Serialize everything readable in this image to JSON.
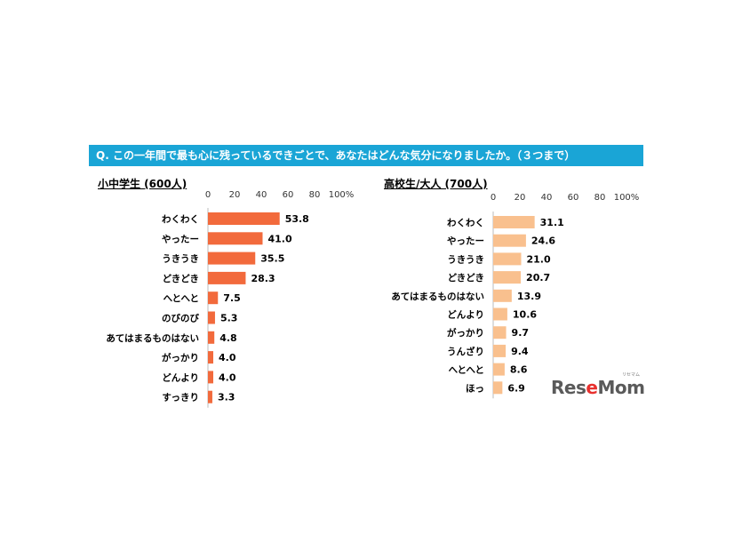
{
  "question": "Q. この一年間で最も心に残っているできごとで、あなたはどんな気分になりましたか。（３つまで）",
  "logo": {
    "text_a": "Res",
    "text_b": "e",
    "text_c": "Mom",
    "kana": "リセマム",
    "accent": "#e8302e"
  },
  "chart_data": [
    {
      "type": "bar",
      "orientation": "horizontal",
      "title": "小中学生 (600人)",
      "color": "#f26a3c",
      "xlim": [
        0,
        100
      ],
      "ticks": [
        "0",
        "20",
        "40",
        "60",
        "80",
        "100%"
      ],
      "categories": [
        "わくわく",
        "やったー",
        "うきうき",
        "どきどき",
        "へとへと",
        "のびのび",
        "あてはまるものはない",
        "がっかり",
        "どんより",
        "すっきり"
      ],
      "values": [
        53.8,
        41.0,
        35.5,
        28.3,
        7.5,
        5.3,
        4.8,
        4.0,
        4.0,
        3.3
      ],
      "labels": [
        "53.8",
        "41.0",
        "35.5",
        "28.3",
        "7.5",
        "5.3",
        "4.8",
        "4.0",
        "4.0",
        "3.3"
      ]
    },
    {
      "type": "bar",
      "orientation": "horizontal",
      "title": "高校生/大人 (700人)",
      "color": "#f9c08e",
      "xlim": [
        0,
        100
      ],
      "ticks": [
        "0",
        "20",
        "40",
        "60",
        "80",
        "100%"
      ],
      "categories": [
        "わくわく",
        "やったー",
        "うきうき",
        "どきどき",
        "あてはまるものはない",
        "どんより",
        "がっかり",
        "うんざり",
        "へとへと",
        "ほっ"
      ],
      "values": [
        31.1,
        24.6,
        21.0,
        20.7,
        13.9,
        10.6,
        9.7,
        9.4,
        8.6,
        6.9
      ],
      "labels": [
        "31.1",
        "24.6",
        "21.0",
        "20.7",
        "13.9",
        "10.6",
        "9.7",
        "9.4",
        "8.6",
        "6.9"
      ]
    }
  ]
}
